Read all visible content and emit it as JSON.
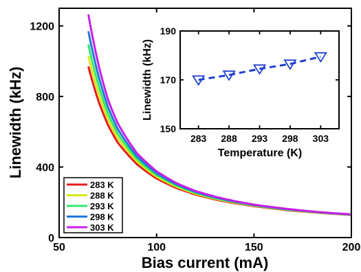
{
  "chart_data": [
    {
      "type": "line",
      "xlabel": "Bias current (mA)",
      "ylabel": "Linewidth (kHz)",
      "xlim": [
        50,
        200
      ],
      "ylim": [
        0,
        1300
      ],
      "xticks": [
        "50",
        "100",
        "150",
        "200"
      ],
      "yticks": [
        "0",
        "400",
        "800",
        "1200"
      ],
      "grid": false,
      "legend_position": "bottom-left",
      "x": [
        65,
        70,
        75,
        80,
        90,
        100,
        110,
        120,
        130,
        140,
        150,
        160,
        170,
        180,
        190,
        200
      ],
      "series": [
        {
          "name": "283 K",
          "color": "#e41a1c",
          "values": [
            970,
            780,
            640,
            540,
            415,
            335,
            282,
            244,
            216,
            195,
            178,
            164,
            152,
            143,
            135,
            128
          ]
        },
        {
          "name": "288 K",
          "color": "#d8e817",
          "values": [
            1030,
            825,
            672,
            565,
            430,
            345,
            289,
            249,
            220,
            198,
            181,
            166,
            154,
            144,
            136,
            129
          ]
        },
        {
          "name": "293 K",
          "color": "#2ee86a",
          "values": [
            1095,
            872,
            705,
            590,
            445,
            355,
            296,
            254,
            224,
            201,
            183,
            168,
            156,
            146,
            137,
            130
          ]
        },
        {
          "name": "298 K",
          "color": "#1f78d8",
          "values": [
            1170,
            925,
            742,
            617,
            460,
            365,
            303,
            259,
            228,
            204,
            185,
            170,
            157,
            147,
            138,
            131
          ]
        },
        {
          "name": "303 K",
          "color": "#c81ee8",
          "values": [
            1265,
            990,
            785,
            650,
            478,
            376,
            310,
            264,
            232,
            207,
            187,
            172,
            159,
            148,
            139,
            132
          ]
        }
      ]
    },
    {
      "type": "line",
      "xlabel": "Temperature (K)",
      "ylabel": "Linewidth (kHz)",
      "xlim": [
        280,
        306
      ],
      "ylim": [
        150,
        190
      ],
      "xticks": [
        "283",
        "288",
        "293",
        "298",
        "303"
      ],
      "yticks": [
        "150",
        "170",
        "190"
      ],
      "x": [
        283,
        288,
        293,
        298,
        303
      ],
      "series": [
        {
          "name": "",
          "color": "#1f3fd0",
          "marker": "down-triangle",
          "line": "dashed",
          "values": [
            170,
            172,
            174.5,
            176.5,
            179.5
          ]
        }
      ]
    }
  ]
}
